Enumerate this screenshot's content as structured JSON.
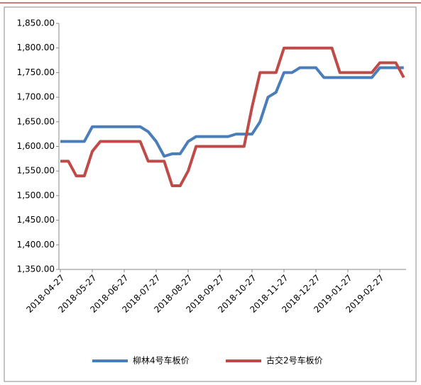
{
  "chart_data": {
    "type": "line",
    "categories": [
      "2018-04-27",
      null,
      null,
      null,
      "2018-05-27",
      null,
      null,
      null,
      "2018-06-27",
      null,
      null,
      null,
      "2018-07-27",
      null,
      null,
      null,
      "2018-08-27",
      null,
      null,
      null,
      "2018-09-27",
      null,
      null,
      null,
      "2018-10-27",
      null,
      null,
      null,
      "2018-11-27",
      null,
      null,
      null,
      "2018-12-27",
      null,
      null,
      null,
      "2019-01-27",
      null,
      null,
      null,
      "2019-02-27",
      null,
      null,
      null
    ],
    "series": [
      {
        "name": "柳林4号车板价",
        "color": "#4a7ebb",
        "values": [
          1610,
          1610,
          1610,
          1610,
          1640,
          1640,
          1640,
          1640,
          1640,
          1640,
          1640,
          1630,
          1610,
          1580,
          1585,
          1585,
          1610,
          1620,
          1620,
          1620,
          1620,
          1620,
          1625,
          1625,
          1625,
          1650,
          1700,
          1710,
          1750,
          1750,
          1760,
          1760,
          1760,
          1740,
          1740,
          1740,
          1740,
          1740,
          1740,
          1740,
          1760,
          1760,
          1760,
          1760
        ]
      },
      {
        "name": "古交2号车板价",
        "color": "#be4b48",
        "values": [
          1570,
          1570,
          1540,
          1540,
          1590,
          1610,
          1610,
          1610,
          1610,
          1610,
          1610,
          1570,
          1570,
          1570,
          1520,
          1520,
          1550,
          1600,
          1600,
          1600,
          1600,
          1600,
          1600,
          1600,
          1680,
          1750,
          1750,
          1750,
          1800,
          1800,
          1800,
          1800,
          1800,
          1800,
          1800,
          1750,
          1750,
          1750,
          1750,
          1750,
          1770,
          1770,
          1770,
          1740
        ]
      }
    ],
    "ylim": [
      1350,
      1850
    ],
    "yticks": [
      {
        "value": 1350,
        "label": "1,350.00"
      },
      {
        "value": 1400,
        "label": "1,400.00"
      },
      {
        "value": 1450,
        "label": "1,450.00"
      },
      {
        "value": 1500,
        "label": "1,500.00"
      },
      {
        "value": 1550,
        "label": "1,550.00"
      },
      {
        "value": 1600,
        "label": "1,600.00"
      },
      {
        "value": 1650,
        "label": "1,650.00"
      },
      {
        "value": 1700,
        "label": "1,700.00"
      },
      {
        "value": 1750,
        "label": "1,750.00"
      },
      {
        "value": 1800,
        "label": "1,800.00"
      },
      {
        "value": 1850,
        "label": "1,850.00"
      }
    ],
    "grid": false,
    "legend": "bottom"
  }
}
